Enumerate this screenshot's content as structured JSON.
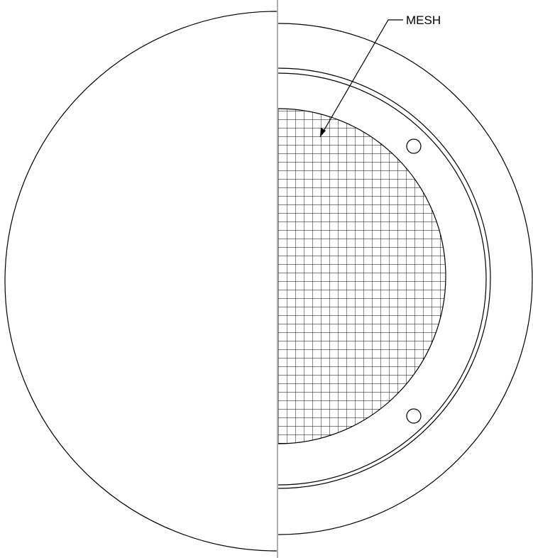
{
  "drawing": {
    "callout_label": "MESH",
    "line_color": "#000000",
    "center_line_color": "#999999",
    "background": "#ffffff"
  }
}
